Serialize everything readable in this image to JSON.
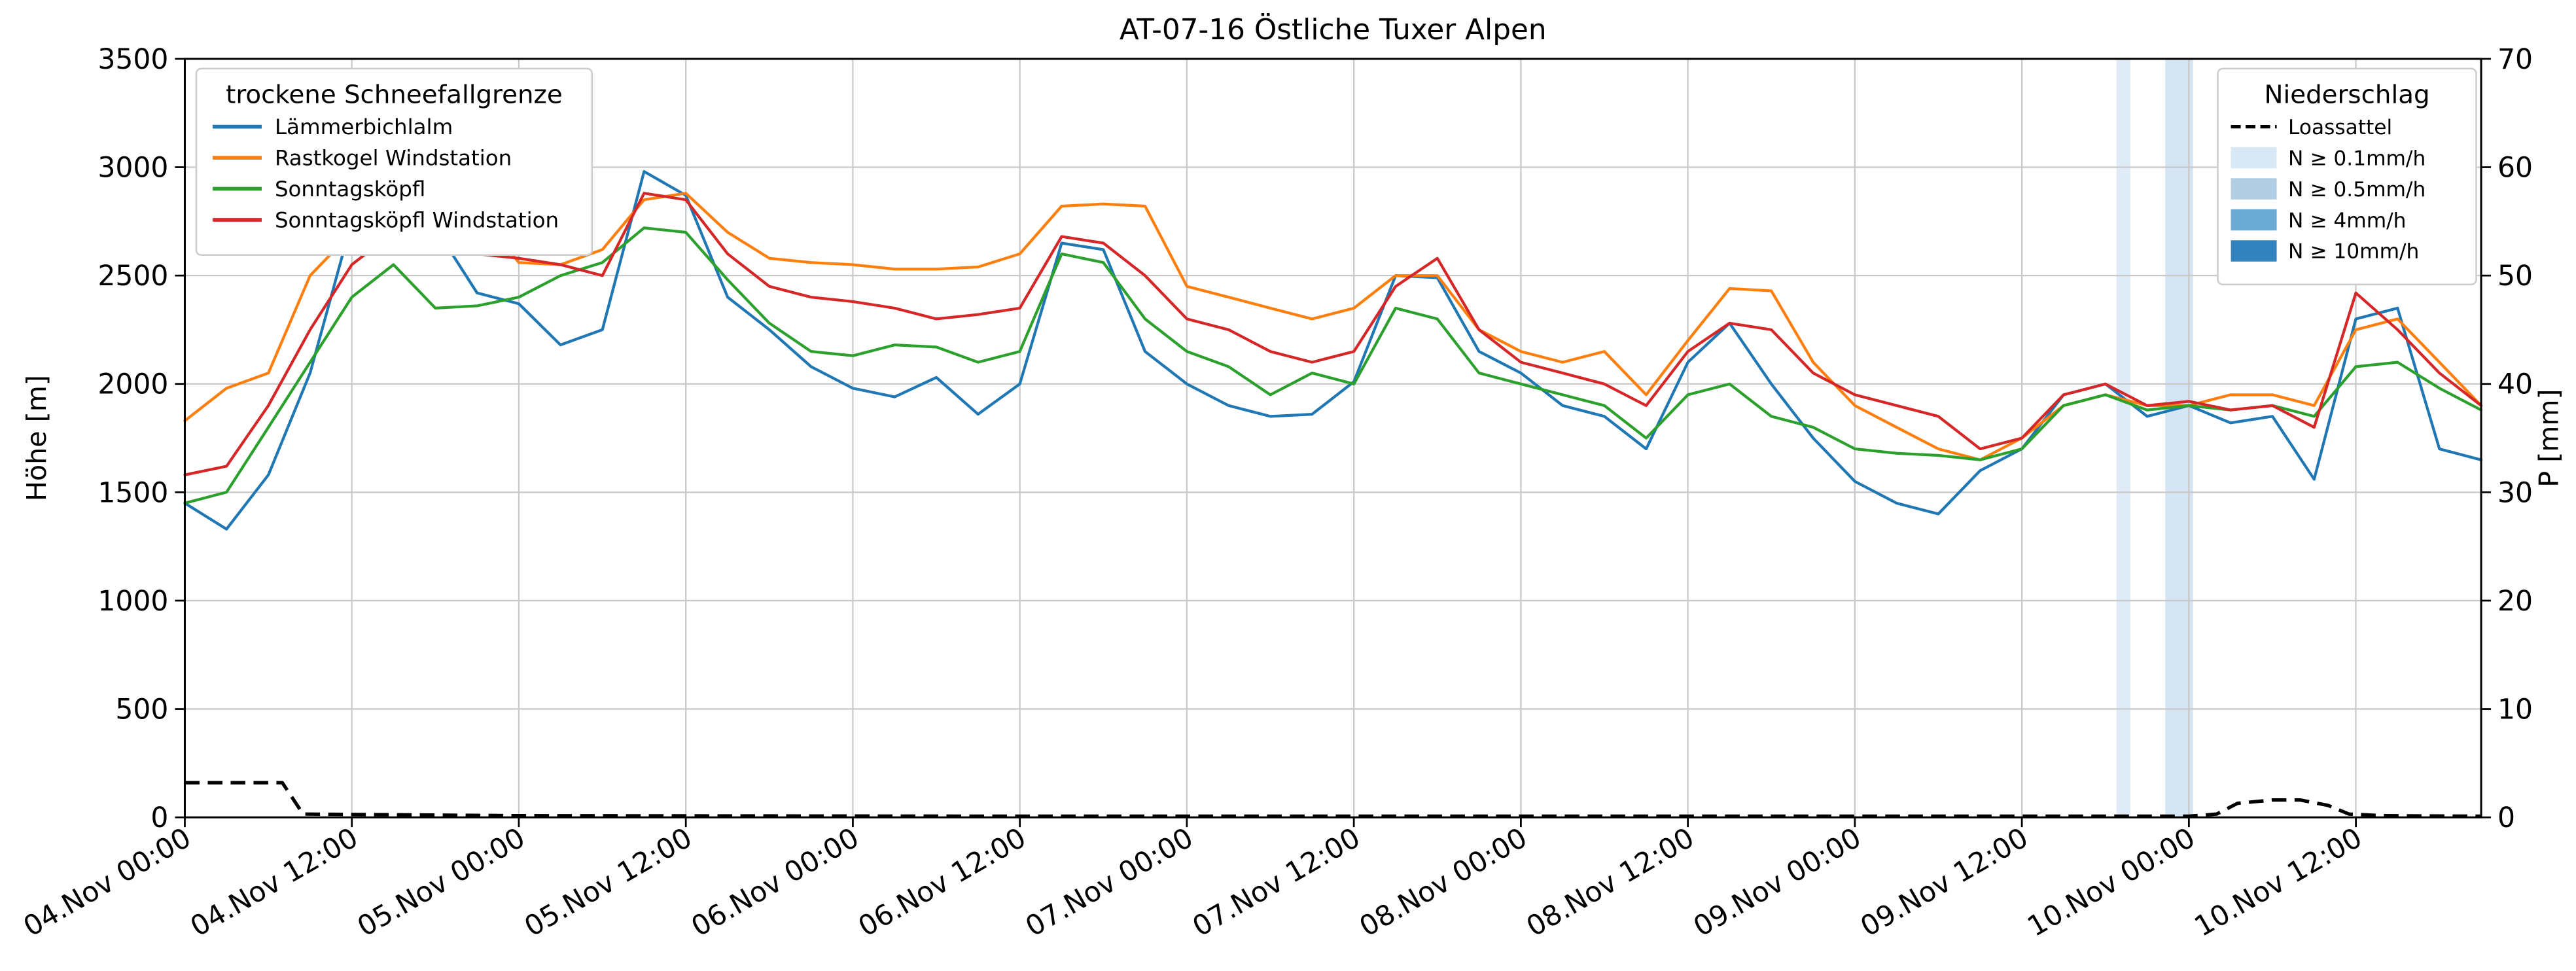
{
  "title": "AT-07-16 Östliche Tuxer Alpen",
  "y_left": {
    "label": "Höhe [m]",
    "min": 0,
    "max": 3500,
    "ticks": [
      0,
      500,
      1000,
      1500,
      2000,
      2500,
      3000,
      3500
    ]
  },
  "y_right": {
    "label": "P [mm]",
    "min": 0,
    "max": 70,
    "ticks": [
      0,
      10,
      20,
      30,
      40,
      50,
      60,
      70
    ]
  },
  "x_axis": {
    "range_hours": [
      0,
      165
    ],
    "tick_hours": [
      0,
      12,
      24,
      36,
      48,
      60,
      72,
      84,
      96,
      108,
      120,
      132,
      144,
      156
    ],
    "tick_labels": [
      "04.Nov 00:00",
      "04.Nov 12:00",
      "05.Nov 00:00",
      "05.Nov 12:00",
      "06.Nov 00:00",
      "06.Nov 12:00",
      "07.Nov 00:00",
      "07.Nov 12:00",
      "08.Nov 00:00",
      "08.Nov 12:00",
      "09.Nov 00:00",
      "09.Nov 12:00",
      "10.Nov 00:00",
      "10.Nov 12:00"
    ]
  },
  "legend_snowline": {
    "title": "trockene Schneefallgrenze",
    "entries": [
      {
        "label": "Lämmerbichlalm",
        "color": "#1f77b4"
      },
      {
        "label": "Rastkogel Windstation",
        "color": "#ff7f0e"
      },
      {
        "label": "Sonntagsköpfl",
        "color": "#2ca02c"
      },
      {
        "label": "Sonntagsköpfl Windstation",
        "color": "#d62728"
      }
    ]
  },
  "legend_precip": {
    "title": "Niederschlag",
    "line_entry": {
      "label": "Loassattel",
      "color": "#000000",
      "style": "dashed"
    },
    "fill_entries": [
      {
        "label": "N ≥ 0.1mm/h",
        "color": "#d9e8f5"
      },
      {
        "label": "N ≥ 0.5mm/h",
        "color": "#b0cde4"
      },
      {
        "label": "N ≥ 4mm/h",
        "color": "#6aaad4"
      },
      {
        "label": "N ≥ 10mm/h",
        "color": "#3182bd"
      }
    ]
  },
  "chart_data": {
    "type": "line",
    "title": "AT-07-16 Östliche Tuxer Alpen",
    "xlabel": "",
    "ylabel_left": "Höhe [m]",
    "ylabel_right": "P [mm]",
    "ylim_left": [
      0,
      3500
    ],
    "ylim_right": [
      0,
      70
    ],
    "grid": true,
    "x_epoch": "04.Nov 00:00",
    "x_unit": "hours since 04.Nov 00:00",
    "x_start_hour": 0,
    "x_step_hours": 3,
    "series": [
      {
        "name": "Lämmerbichlalm",
        "color": "#1f77b4",
        "axis": "left",
        "values": [
          1450,
          1330,
          1580,
          2050,
          2750,
          2600,
          2720,
          2420,
          2370,
          2180,
          2250,
          2980,
          2870,
          2400,
          2250,
          2080,
          1980,
          1940,
          2030,
          1860,
          2000,
          2650,
          2620,
          2150,
          2000,
          1900,
          1850,
          1860,
          2010,
          2500,
          2490,
          2150,
          2050,
          1900,
          1850,
          1700,
          2100,
          2280,
          2000,
          1750,
          1550,
          1450,
          1400,
          1600,
          1700,
          1950,
          2000,
          1850,
          1900,
          1820,
          1850,
          1560,
          2300,
          2350,
          1700,
          1650
        ]
      },
      {
        "name": "Rastkogel Windstation",
        "color": "#ff7f0e",
        "axis": "left",
        "values": [
          1830,
          1980,
          2050,
          2500,
          2700,
          2880,
          2760,
          2800,
          2560,
          2550,
          2620,
          2850,
          2880,
          2700,
          2580,
          2560,
          2550,
          2530,
          2530,
          2540,
          2600,
          2820,
          2830,
          2820,
          2450,
          2400,
          2350,
          2300,
          2350,
          2500,
          2500,
          2250,
          2150,
          2100,
          2150,
          1950,
          2200,
          2440,
          2430,
          2100,
          1900,
          1800,
          1700,
          1650,
          1750,
          1900,
          1950,
          1900,
          1900,
          1950,
          1950,
          1900,
          2250,
          2300,
          2100,
          1900
        ]
      },
      {
        "name": "Sonntagsköpfl",
        "color": "#2ca02c",
        "axis": "left",
        "values": [
          1450,
          1500,
          1800,
          2100,
          2400,
          2550,
          2350,
          2360,
          2400,
          2500,
          2560,
          2720,
          2700,
          2480,
          2280,
          2150,
          2130,
          2180,
          2170,
          2100,
          2150,
          2600,
          2560,
          2300,
          2150,
          2080,
          1950,
          2050,
          2000,
          2350,
          2300,
          2050,
          2000,
          1950,
          1900,
          1750,
          1950,
          2000,
          1850,
          1800,
          1700,
          1680,
          1670,
          1650,
          1700,
          1900,
          1950,
          1880,
          1900,
          1880,
          1900,
          1850,
          2080,
          2100,
          1980,
          1880
        ]
      },
      {
        "name": "Sonntagsköpfl Windstation",
        "color": "#d62728",
        "axis": "left",
        "values": [
          1580,
          1620,
          1900,
          2250,
          2550,
          2700,
          2650,
          2600,
          2580,
          2550,
          2500,
          2880,
          2850,
          2600,
          2450,
          2400,
          2380,
          2350,
          2300,
          2320,
          2350,
          2680,
          2650,
          2500,
          2300,
          2250,
          2150,
          2100,
          2150,
          2450,
          2580,
          2250,
          2100,
          2050,
          2000,
          1900,
          2150,
          2280,
          2250,
          2050,
          1950,
          1900,
          1850,
          1700,
          1750,
          1950,
          2000,
          1900,
          1920,
          1880,
          1900,
          1800,
          2420,
          2250,
          2050,
          1900
        ]
      }
    ],
    "precip_line": {
      "name": "Loassattel",
      "axis": "right",
      "unit": "mm",
      "color": "#000000",
      "style": "dashed",
      "points": [
        [
          0,
          3.2
        ],
        [
          7,
          3.2
        ],
        [
          8.5,
          0.3
        ],
        [
          24,
          0.15
        ],
        [
          60,
          0.1
        ],
        [
          96,
          0.1
        ],
        [
          130,
          0.1
        ],
        [
          144,
          0.1
        ],
        [
          146,
          0.3
        ],
        [
          147.5,
          1.3
        ],
        [
          150,
          1.6
        ],
        [
          152,
          1.6
        ],
        [
          154,
          1.1
        ],
        [
          155.5,
          0.3
        ],
        [
          158,
          0.15
        ],
        [
          165,
          0.1
        ]
      ]
    },
    "precip_bands": [
      {
        "start_hour": 138.8,
        "end_hour": 139.8,
        "intensity": "N ≥ 0.1mm/h",
        "color": "#d9e8f5"
      },
      {
        "start_hour": 142.3,
        "end_hour": 144.3,
        "intensity": "N ≥ 0.1mm/h",
        "color": "#cfe0f1"
      }
    ]
  }
}
